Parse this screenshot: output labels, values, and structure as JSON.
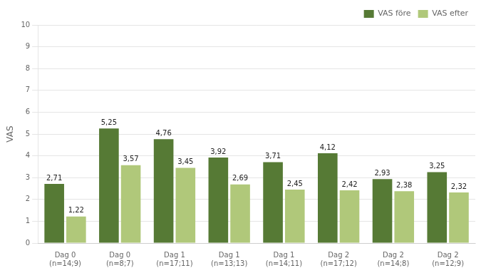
{
  "chart_data": {
    "type": "bar",
    "categories": [
      "Dag 0\n(n=14;9)",
      "Dag 0\n(n=8;7)",
      "Dag 1\n(n=17;11)",
      "Dag 1\n(n=13;13)",
      "Dag 1\n(n=14;11)",
      "Dag 2\n(n=17;12)",
      "Dag 2\n(n=14;8)",
      "Dag 2\n(n=12;9)"
    ],
    "series": [
      {
        "name": "VAS före",
        "color": "#567a35",
        "values": [
          2.71,
          5.25,
          4.76,
          3.92,
          3.71,
          4.12,
          2.93,
          3.25
        ],
        "value_labels": [
          "2,71",
          "5,25",
          "4,76",
          "3,92",
          "3,71",
          "4,12",
          "2,93",
          "3,25"
        ]
      },
      {
        "name": "VAS efter",
        "color": "#b0c87a",
        "values": [
          1.22,
          3.57,
          3.45,
          2.69,
          2.45,
          2.42,
          2.38,
          2.32
        ],
        "value_labels": [
          "1,22",
          "3,57",
          "3,45",
          "2,69",
          "2,45",
          "2,42",
          "2,38",
          "2,32"
        ]
      }
    ],
    "ylabel": "VAS",
    "ylim": [
      0,
      10
    ],
    "yticks": [
      0,
      1,
      2,
      3,
      4,
      5,
      6,
      7,
      8,
      9,
      10
    ],
    "grid": true,
    "legend": "upper right",
    "data_labels": true
  }
}
